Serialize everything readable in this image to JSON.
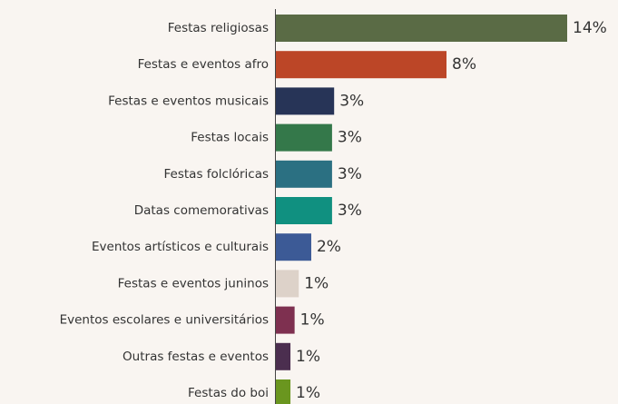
{
  "chart_data": {
    "type": "bar",
    "orientation": "horizontal",
    "categories": [
      "Festas religiosas",
      "Festas e eventos afro",
      "Festas e eventos musicais",
      "Festas locais",
      "Festas folclóricas",
      "Datas comemorativas",
      "Eventos artísticos e culturais",
      "Festas e eventos juninos",
      "Eventos escolares e universitários",
      "Outras festas e eventos",
      "Festas do boi"
    ],
    "values": [
      14,
      8.2,
      2.8,
      2.7,
      2.7,
      2.7,
      1.7,
      1.1,
      0.9,
      0.7,
      0.7
    ],
    "value_labels": [
      "14%",
      "8%",
      "3%",
      "3%",
      "3%",
      "3%",
      "2%",
      "1%",
      "1%",
      "1%",
      "1%"
    ],
    "colors": [
      "#5a6b45",
      "#bc4627",
      "#273457",
      "#34784a",
      "#2b7082",
      "#109080",
      "#3c5a96",
      "#ddd2c9",
      "#7e3050",
      "#4b2e4f",
      "#6a961f"
    ]
  }
}
